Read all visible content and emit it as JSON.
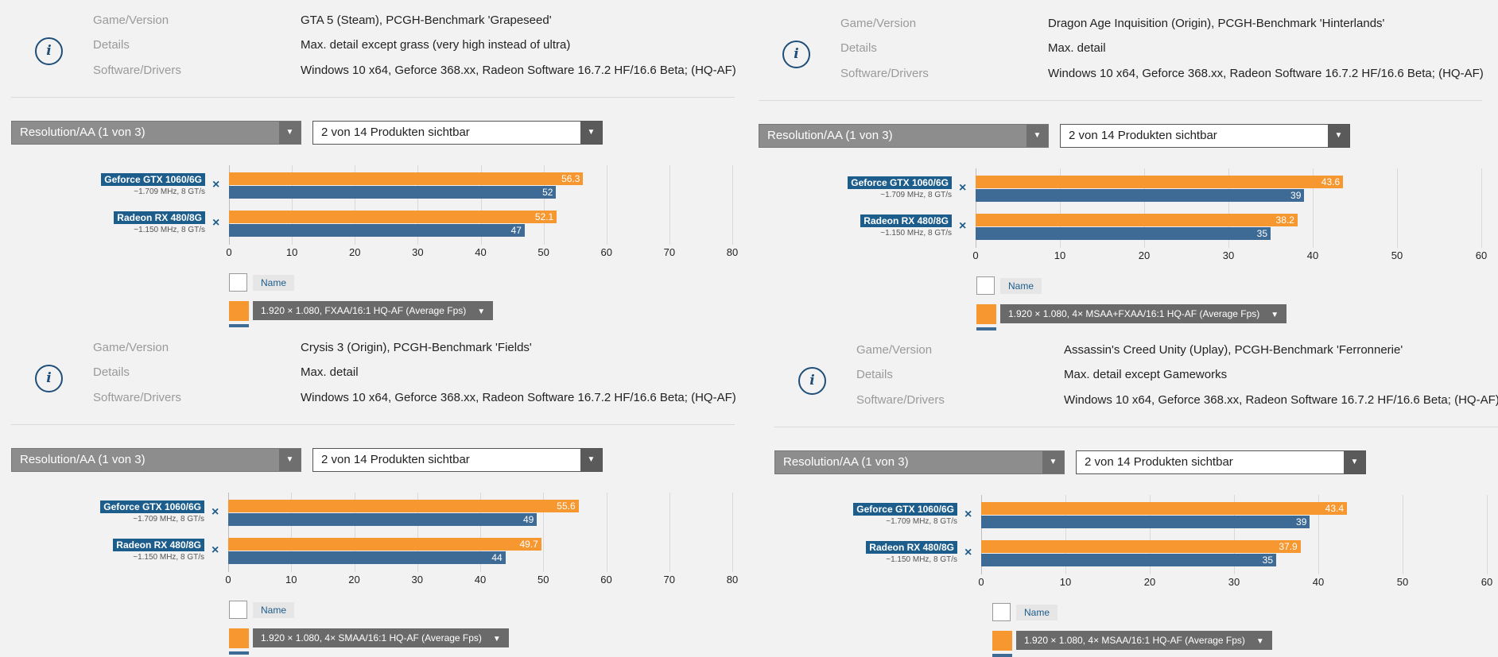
{
  "panels": [
    {
      "labels": {
        "game": "Game/Version",
        "details": "Details",
        "software": "Software/Drivers"
      },
      "game": "GTA 5 (Steam), PCGH-Benchmark 'Grapeseed'",
      "details": "Max. detail except grass (very high instead of ultra)",
      "software": "Windows 10 x64, Geforce 368.xx, Radeon Software 16.7.2 HF/16.6 Beta; (HQ-AF)",
      "resolution_select": "Resolution/AA (1 von 3)",
      "products_select": "2 von 14 Produkten sichtbar",
      "legend_name": "Name",
      "metric": "1.920 × 1.080, FXAA/16:1 HQ-AF (Average Fps)",
      "info_icon": "i",
      "remove_icon": "×",
      "caret": "▼",
      "chart_data": {
        "type": "bar",
        "categories": [
          "Geforce GTX 1060/6G",
          "Radeon RX 480/8G"
        ],
        "subtitles": [
          "~1.709 MHz, 8 GT/s",
          "~1.150 MHz, 8 GT/s"
        ],
        "series": [
          {
            "name": "Orange",
            "color": "#f7972f",
            "values": [
              56.3,
              52.1
            ]
          },
          {
            "name": "Blue",
            "color": "#3e6a96",
            "values": [
              52,
              47
            ]
          }
        ],
        "xticks": [
          0,
          10,
          20,
          30,
          40,
          50,
          60,
          70,
          80
        ],
        "xlim": [
          0,
          80
        ]
      }
    },
    {
      "labels": {
        "game": "Game/Version",
        "details": "Details",
        "software": "Software/Drivers"
      },
      "game": "Dragon Age Inquisition (Origin), PCGH-Benchmark 'Hinterlands'",
      "details": "Max. detail",
      "software": "Windows 10 x64, Geforce 368.xx, Radeon Software 16.7.2 HF/16.6 Beta; (HQ-AF)",
      "resolution_select": "Resolution/AA (1 von 3)",
      "products_select": "2 von 14 Produkten sichtbar",
      "legend_name": "Name",
      "metric": "1.920 × 1.080, 4× MSAA+FXAA/16:1 HQ-AF (Average Fps)",
      "info_icon": "i",
      "remove_icon": "×",
      "caret": "▼",
      "chart_data": {
        "type": "bar",
        "categories": [
          "Geforce GTX 1060/6G",
          "Radeon RX 480/8G"
        ],
        "subtitles": [
          "~1.709 MHz, 8 GT/s",
          "~1.150 MHz, 8 GT/s"
        ],
        "series": [
          {
            "name": "Orange",
            "color": "#f7972f",
            "values": [
              43.6,
              38.2
            ]
          },
          {
            "name": "Blue",
            "color": "#3e6a96",
            "values": [
              39,
              35
            ]
          }
        ],
        "xticks": [
          0,
          10,
          20,
          30,
          40,
          50,
          60
        ],
        "xlim": [
          0,
          60
        ]
      }
    },
    {
      "labels": {
        "game": "Game/Version",
        "details": "Details",
        "software": "Software/Drivers"
      },
      "game": "Crysis 3 (Origin), PCGH-Benchmark 'Fields'",
      "details": "Max. detail",
      "software": "Windows 10 x64, Geforce 368.xx, Radeon Software 16.7.2 HF/16.6 Beta; (HQ-AF)",
      "resolution_select": "Resolution/AA (1 von 3)",
      "products_select": "2 von 14 Produkten sichtbar",
      "legend_name": "Name",
      "metric": "1.920 × 1.080, 4× SMAA/16:1 HQ-AF (Average Fps)",
      "info_icon": "i",
      "remove_icon": "×",
      "caret": "▼",
      "chart_data": {
        "type": "bar",
        "categories": [
          "Geforce GTX 1060/6G",
          "Radeon RX 480/8G"
        ],
        "subtitles": [
          "~1.709 MHz, 8 GT/s",
          "~1.150 MHz, 8 GT/s"
        ],
        "series": [
          {
            "name": "Orange",
            "color": "#f7972f",
            "values": [
              55.6,
              49.7
            ]
          },
          {
            "name": "Blue",
            "color": "#3e6a96",
            "values": [
              49,
              44
            ]
          }
        ],
        "xticks": [
          0,
          10,
          20,
          30,
          40,
          50,
          60,
          70,
          80
        ],
        "xlim": [
          0,
          80
        ]
      }
    },
    {
      "labels": {
        "game": "Game/Version",
        "details": "Details",
        "software": "Software/Drivers"
      },
      "game": "Assassin's Creed Unity (Uplay), PCGH-Benchmark 'Ferronnerie'",
      "details": "Max. detail except Gameworks",
      "software": "Windows 10 x64, Geforce 368.xx, Radeon Software 16.7.2 HF/16.6 Beta; (HQ-AF)",
      "resolution_select": "Resolution/AA (1 von 3)",
      "products_select": "2 von 14 Produkten sichtbar",
      "legend_name": "Name",
      "metric": "1.920 × 1.080, 4× MSAA/16:1 HQ-AF (Average Fps)",
      "info_icon": "i",
      "remove_icon": "×",
      "caret": "▼",
      "chart_data": {
        "type": "bar",
        "categories": [
          "Geforce GTX 1060/6G",
          "Radeon RX 480/8G"
        ],
        "subtitles": [
          "~1.709 MHz, 8 GT/s",
          "~1.150 MHz, 8 GT/s"
        ],
        "series": [
          {
            "name": "Orange",
            "color": "#f7972f",
            "values": [
              43.4,
              37.9
            ]
          },
          {
            "name": "Blue",
            "color": "#3e6a96",
            "values": [
              39,
              35
            ]
          }
        ],
        "xticks": [
          0,
          10,
          20,
          30,
          40,
          50,
          60
        ],
        "xlim": [
          0,
          60
        ]
      }
    }
  ]
}
